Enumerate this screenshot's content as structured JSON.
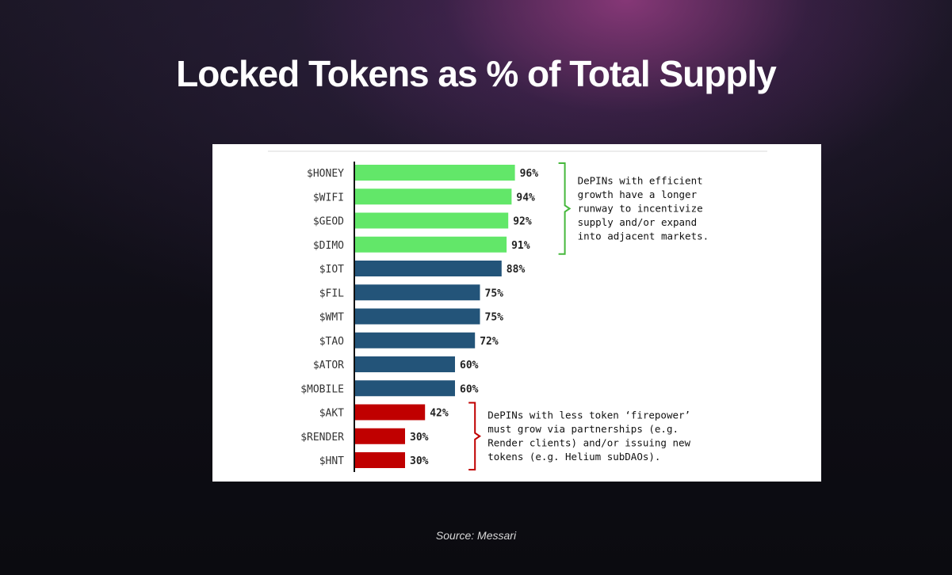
{
  "title": "Locked Tokens as % of Total Supply",
  "source": "Source: Messari",
  "colors": {
    "green": "#62e769",
    "blue": "#235479",
    "red": "#c00000",
    "green_bracket": "#46b83c",
    "red_bracket": "#c00000"
  },
  "chart_data": {
    "type": "bar",
    "orientation": "horizontal",
    "categories": [
      "$HONEY",
      "$WIFI",
      "$GEOD",
      "$DIMO",
      "$IOT",
      "$FIL",
      "$WMT",
      "$TAO",
      "$ATOR",
      "$MOBILE",
      "$AKT",
      "$RENDER",
      "$HNT"
    ],
    "values": [
      96,
      94,
      92,
      91,
      88,
      75,
      75,
      72,
      60,
      60,
      42,
      30,
      30
    ],
    "value_labels": [
      "96%",
      "94%",
      "92%",
      "91%",
      "88%",
      "75%",
      "75%",
      "72%",
      "60%",
      "60%",
      "42%",
      "30%",
      "30%"
    ],
    "groups": [
      "green",
      "green",
      "green",
      "green",
      "blue",
      "blue",
      "blue",
      "blue",
      "blue",
      "blue",
      "red",
      "red",
      "red"
    ],
    "xlim": [
      0,
      100
    ],
    "annotations": [
      {
        "group": "green",
        "lines": [
          "DePINs with efficient",
          "growth have a longer",
          "runway to incentivize",
          "supply and/or expand",
          "into adjacent markets."
        ]
      },
      {
        "group": "red",
        "lines": [
          "DePINs with less token ‘firepower’",
          "must grow via partnerships (e.g.",
          "Render clients) and/or issuing new",
          "tokens (e.g. Helium subDAOs)."
        ]
      }
    ]
  }
}
